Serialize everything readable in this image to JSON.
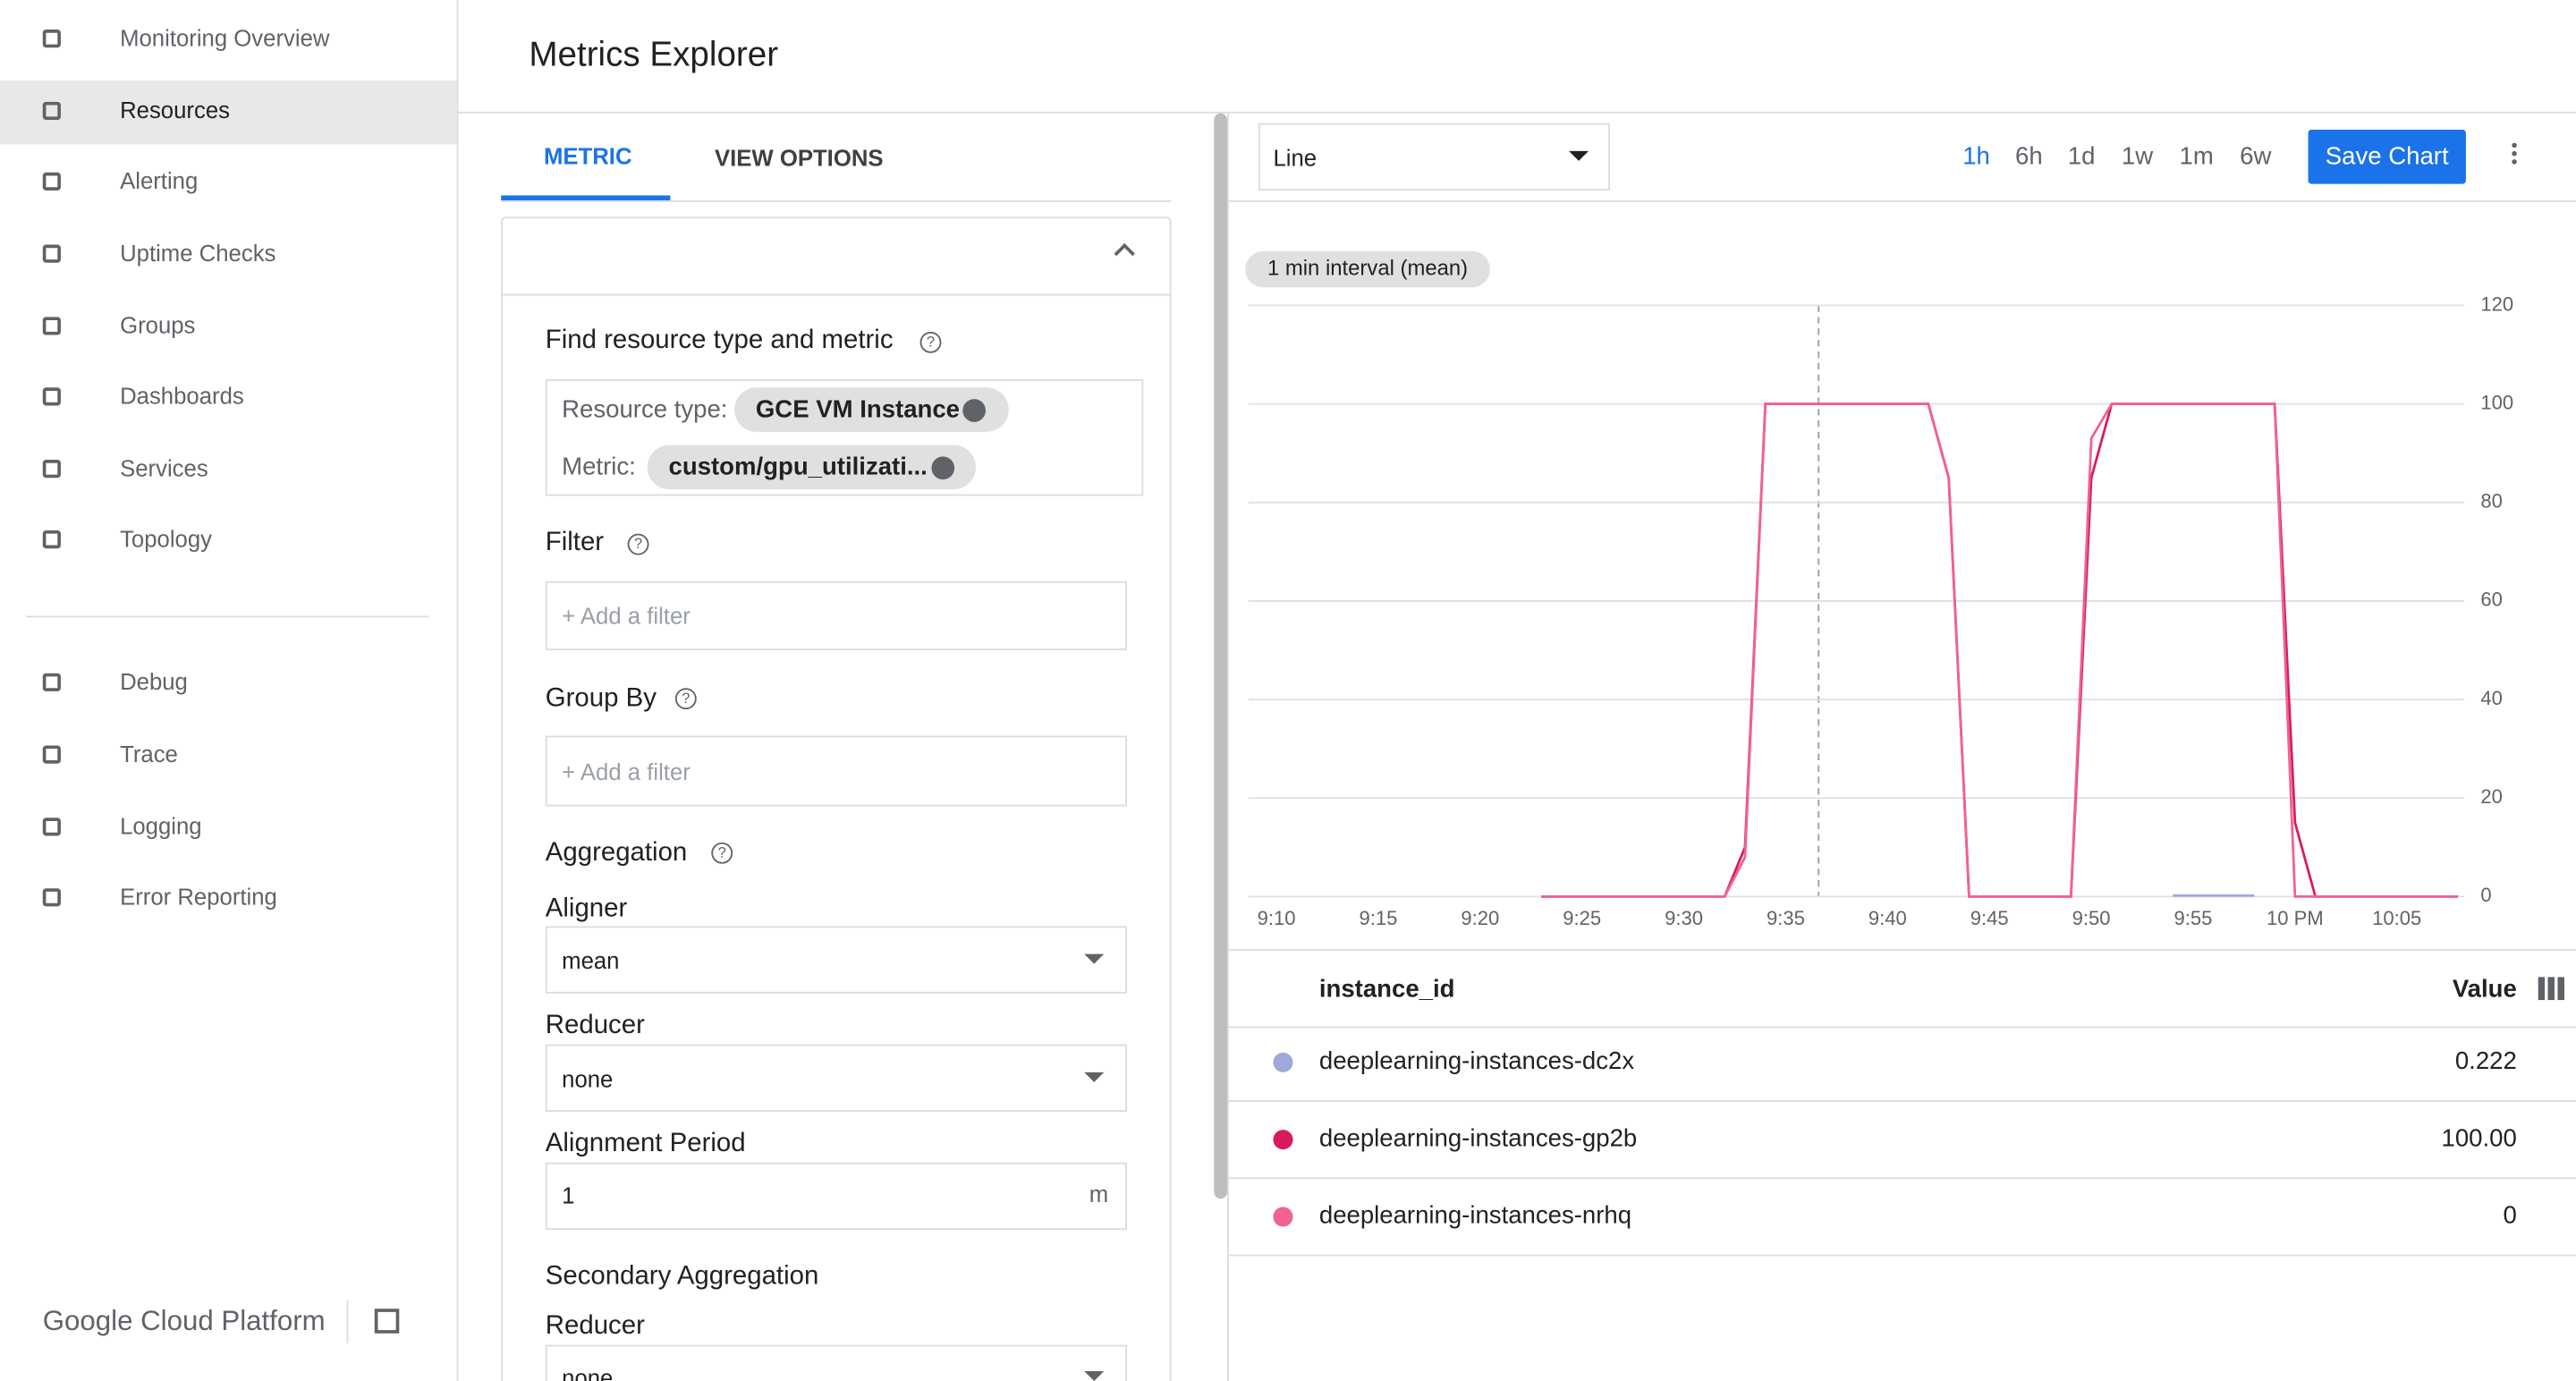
{
  "nav": {
    "items": [
      "Monitoring Overview",
      "Resources",
      "Alerting",
      "Uptime Checks",
      "Groups",
      "Dashboards",
      "Services",
      "Topology"
    ],
    "items2": [
      "Debug",
      "Trace",
      "Logging",
      "Error Reporting"
    ],
    "brand": "Google Cloud Platform"
  },
  "header": {
    "title": "Metrics Explorer"
  },
  "tabs": [
    "METRIC",
    "VIEW OPTIONS"
  ],
  "form": {
    "find_label": "Find resource type and metric",
    "resource_label": "Resource type:",
    "resource_value": "GCE VM Instance",
    "metric_label": "Metric:",
    "metric_value": "custom/gpu_utilizati...",
    "filter_label": "Filter",
    "filter_placeholder": "+ Add a filter",
    "group_label": "Group By",
    "group_placeholder": "+ Add a filter",
    "aggregation_label": "Aggregation",
    "aligner_label": "Aligner",
    "aligner_value": "mean",
    "reducer_label": "Reducer",
    "reducer_value": "none",
    "period_label": "Alignment Period",
    "period_value": "1",
    "period_unit": "m",
    "secondary_label": "Secondary Aggregation",
    "secondary_reducer_label": "Reducer",
    "secondary_reducer_value": "none"
  },
  "toolbar": {
    "chart_type": "Line",
    "ranges": [
      "1h",
      "6h",
      "1d",
      "1w",
      "1m",
      "6w"
    ],
    "save": "Save Chart"
  },
  "chart_data": {
    "type": "line",
    "annotation": "1 min interval (mean)",
    "x": [
      "9:10",
      null,
      null,
      null,
      null,
      "9:15",
      null,
      null,
      null,
      null,
      "9:20",
      null,
      null,
      null,
      null,
      "9:25",
      null,
      null,
      null,
      null,
      "9:30",
      null,
      null,
      null,
      null,
      "9:35",
      null,
      null,
      null,
      null,
      "9:40",
      null,
      null,
      null,
      null,
      "9:45",
      null,
      null,
      null,
      null,
      "9:50",
      null,
      null,
      null,
      null,
      "9:55",
      null,
      null,
      null,
      null,
      "10 PM",
      null,
      null,
      null,
      null,
      "10:05",
      null,
      null,
      null
    ],
    "series": [
      {
        "name": "deeplearning-instances-dc2x",
        "color": "#9fa8da",
        "values": [
          null,
          null,
          null,
          null,
          null,
          null,
          null,
          null,
          null,
          null,
          null,
          null,
          null,
          null,
          null,
          null,
          null,
          null,
          null,
          null,
          null,
          null,
          null,
          null,
          null,
          null,
          null,
          null,
          null,
          null,
          null,
          null,
          null,
          null,
          null,
          null,
          null,
          null,
          null,
          null,
          null,
          null,
          null,
          null,
          0.2,
          0.2,
          0.2,
          0.2,
          0.2,
          null,
          null,
          null,
          null,
          null,
          null,
          null,
          null,
          null,
          null
        ]
      },
      {
        "name": "deeplearning-instances-gp2b",
        "color": "#d81b60",
        "values": [
          null,
          null,
          null,
          null,
          null,
          null,
          null,
          null,
          null,
          null,
          null,
          null,
          null,
          0,
          0,
          0,
          0,
          0,
          0,
          0,
          0,
          0,
          0,
          10,
          100,
          100,
          100,
          100,
          100,
          100,
          100,
          100,
          100,
          85,
          0,
          0,
          0,
          0,
          0,
          0,
          85,
          100,
          100,
          100,
          100,
          100,
          100,
          100,
          100,
          100,
          15,
          0,
          0,
          0,
          0,
          0,
          0,
          0,
          0
        ]
      },
      {
        "name": "deeplearning-instances-nrhq",
        "color": "#f06292",
        "values": [
          null,
          null,
          null,
          null,
          null,
          null,
          null,
          null,
          null,
          null,
          null,
          null,
          null,
          0,
          0,
          0,
          0,
          0,
          0,
          0,
          0,
          0,
          0,
          8,
          100,
          100,
          100,
          100,
          100,
          100,
          100,
          100,
          100,
          85,
          0,
          0,
          0,
          0,
          0,
          0,
          93,
          100,
          100,
          100,
          100,
          100,
          100,
          100,
          100,
          100,
          0,
          0,
          0,
          0,
          0,
          0,
          0,
          0,
          0
        ]
      }
    ],
    "ylim": [
      0,
      120
    ],
    "yticks": [
      0,
      20,
      40,
      60,
      80,
      100,
      120
    ],
    "grid": true
  },
  "table": {
    "columns": [
      "instance_id",
      "Value"
    ],
    "values": [
      "0.222",
      "100.00",
      "0"
    ]
  }
}
